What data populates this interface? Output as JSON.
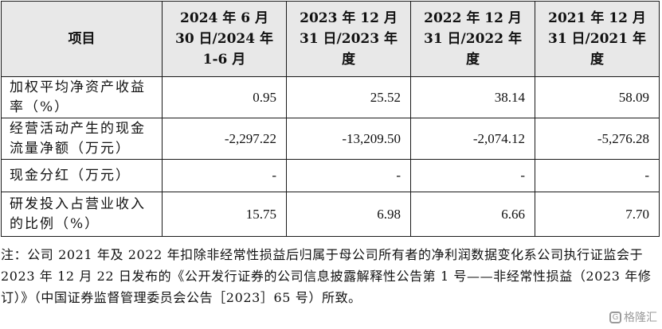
{
  "table": {
    "header": {
      "item": "项目",
      "periods": [
        [
          "2024 年 6 月",
          "30 日/2024 年",
          "1-6 月"
        ],
        [
          "2023 年 12 月",
          "31 日/2023 年",
          "度"
        ],
        [
          "2022 年 12 月",
          "31 日/2022 年",
          "度"
        ],
        [
          "2021 年 12 月",
          "31 日/2021 年",
          "度"
        ]
      ]
    },
    "rows": [
      {
        "label": "加权平均净资产收益率（%）",
        "values": [
          "0.95",
          "25.52",
          "38.14",
          "58.09"
        ]
      },
      {
        "label": "经营活动产生的现金流量净额（万元）",
        "values": [
          "-2,297.22",
          "-13,209.50",
          "-2,074.12",
          "-5,276.28"
        ]
      },
      {
        "label": "现金分红（万元）",
        "values": [
          "-",
          "-",
          "-",
          "-"
        ]
      },
      {
        "label": "研发投入占营业收入的比例（%）",
        "values": [
          "15.75",
          "6.98",
          "6.66",
          "7.70"
        ]
      }
    ]
  },
  "note": "注：公司 2021 年及 2022 年扣除非经常性损益后归属于母公司所有者的净利润数据变化系公司执行证监会于 2023 年 12 月 22 日发布的《公开发行证券的公司信息披露解释性公告第 1 号——非经常性损益（2023 年修订）》（中国证券监督管理委员会公告［2023］65 号）所致。",
  "watermark": {
    "text": "格隆汇",
    "icon": "gelonghui-logo-icon"
  }
}
